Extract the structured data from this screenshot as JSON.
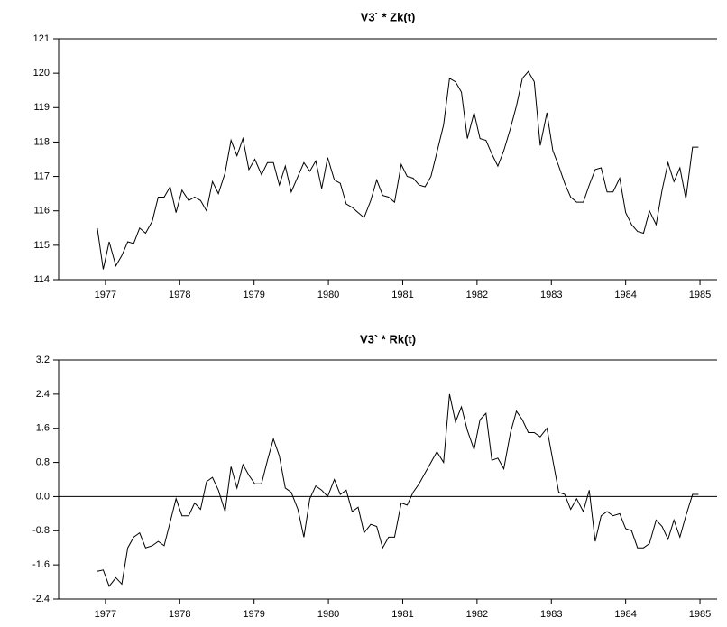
{
  "chart_data": [
    {
      "type": "line",
      "title": "V3` * Zk(t)",
      "x": [
        1976.89,
        1976.97,
        1977.05,
        1977.14,
        1977.22,
        1977.3,
        1977.38,
        1977.46,
        1977.54,
        1977.63,
        1977.71,
        1977.79,
        1977.87,
        1977.95,
        1978.03,
        1978.12,
        1978.2,
        1978.28,
        1978.36,
        1978.44,
        1978.52,
        1978.61,
        1978.69,
        1978.77,
        1978.85,
        1978.93,
        1979.01,
        1979.1,
        1979.18,
        1979.26,
        1979.34,
        1979.42,
        1979.5,
        1979.59,
        1979.67,
        1979.75,
        1979.83,
        1979.91,
        1979.99,
        1980.08,
        1980.16,
        1980.24,
        1980.32,
        1980.4,
        1980.48,
        1980.57,
        1980.65,
        1980.73,
        1980.81,
        1980.89,
        1980.98,
        1981.06,
        1981.14,
        1981.22,
        1981.3,
        1981.38,
        1981.46,
        1981.55,
        1981.63,
        1981.71,
        1981.79,
        1981.87,
        1981.96,
        1982.04,
        1982.12,
        1982.2,
        1982.28,
        1982.36,
        1982.45,
        1982.53,
        1982.61,
        1982.69,
        1982.77,
        1982.85,
        1982.94,
        1983.02,
        1983.1,
        1983.18,
        1983.26,
        1983.34,
        1983.43,
        1983.51,
        1983.59,
        1983.67,
        1983.75,
        1983.83,
        1983.92,
        1984.0,
        1984.08,
        1984.16,
        1984.24,
        1984.32,
        1984.41,
        1984.49,
        1984.57,
        1984.65,
        1984.73,
        1984.81,
        1984.9,
        1984.98
      ],
      "values": [
        115.5,
        114.3,
        115.1,
        114.4,
        114.7,
        115.1,
        115.05,
        115.5,
        115.35,
        115.7,
        116.4,
        116.4,
        116.7,
        115.95,
        116.6,
        116.3,
        116.4,
        116.3,
        116.0,
        116.85,
        116.5,
        117.1,
        118.05,
        117.6,
        118.1,
        117.2,
        117.5,
        117.05,
        117.4,
        117.4,
        116.75,
        117.3,
        116.55,
        117.0,
        117.4,
        117.15,
        117.45,
        116.65,
        117.55,
        116.9,
        116.8,
        116.2,
        116.1,
        115.95,
        115.8,
        116.3,
        116.9,
        116.45,
        116.4,
        116.25,
        117.35,
        117.0,
        116.95,
        116.75,
        116.7,
        117.0,
        117.7,
        118.5,
        119.85,
        119.75,
        119.45,
        118.1,
        118.85,
        118.1,
        118.05,
        117.65,
        117.3,
        117.75,
        118.4,
        119.05,
        119.85,
        120.05,
        119.75,
        117.9,
        118.85,
        117.75,
        117.3,
        116.8,
        116.4,
        116.25,
        116.25,
        116.75,
        117.2,
        117.25,
        116.55,
        116.55,
        116.95,
        115.95,
        115.6,
        115.4,
        115.35,
        116.0,
        115.6,
        116.6,
        117.4,
        116.85,
        117.25,
        116.35,
        117.85,
        117.85
      ],
      "color": "#000000",
      "xlim": [
        1976.37,
        1985.23
      ],
      "xticks": [
        1977,
        1978,
        1979,
        1980,
        1981,
        1982,
        1983,
        1984,
        1985
      ],
      "ylim": [
        114,
        121
      ],
      "yticks": [
        114,
        115,
        116,
        117,
        118,
        119,
        120,
        121
      ]
    },
    {
      "type": "line",
      "title": "V3` * Rk(t)",
      "x": [
        1976.89,
        1976.97,
        1977.05,
        1977.14,
        1977.22,
        1977.3,
        1977.38,
        1977.46,
        1977.54,
        1977.63,
        1977.71,
        1977.79,
        1977.87,
        1977.95,
        1978.03,
        1978.12,
        1978.2,
        1978.28,
        1978.36,
        1978.44,
        1978.52,
        1978.61,
        1978.69,
        1978.77,
        1978.85,
        1978.93,
        1979.01,
        1979.1,
        1979.18,
        1979.26,
        1979.34,
        1979.42,
        1979.5,
        1979.59,
        1979.67,
        1979.75,
        1979.83,
        1979.91,
        1979.99,
        1980.08,
        1980.16,
        1980.24,
        1980.32,
        1980.4,
        1980.48,
        1980.57,
        1980.65,
        1980.73,
        1980.81,
        1980.89,
        1980.98,
        1981.06,
        1981.14,
        1981.22,
        1981.3,
        1981.38,
        1981.46,
        1981.55,
        1981.63,
        1981.71,
        1981.79,
        1981.87,
        1981.96,
        1982.04,
        1982.12,
        1982.2,
        1982.28,
        1982.36,
        1982.45,
        1982.53,
        1982.61,
        1982.69,
        1982.77,
        1982.85,
        1982.94,
        1983.02,
        1983.1,
        1983.18,
        1983.26,
        1983.34,
        1983.43,
        1983.51,
        1983.59,
        1983.67,
        1983.75,
        1983.83,
        1983.92,
        1984.0,
        1984.08,
        1984.16,
        1984.24,
        1984.32,
        1984.41,
        1984.49,
        1984.57,
        1984.65,
        1984.73,
        1984.81,
        1984.9,
        1984.98
      ],
      "values": [
        -1.75,
        -1.72,
        -2.1,
        -1.9,
        -2.05,
        -1.2,
        -0.95,
        -0.85,
        -1.2,
        -1.15,
        -1.05,
        -1.15,
        -0.6,
        -0.05,
        -0.45,
        -0.45,
        -0.15,
        -0.3,
        0.35,
        0.45,
        0.15,
        -0.35,
        0.7,
        0.2,
        0.75,
        0.5,
        0.3,
        0.3,
        0.85,
        1.35,
        0.95,
        0.2,
        0.1,
        -0.3,
        -0.95,
        -0.05,
        0.25,
        0.15,
        0.0,
        0.4,
        0.05,
        0.15,
        -0.35,
        -0.25,
        -0.85,
        -0.65,
        -0.7,
        -1.2,
        -0.95,
        -0.95,
        -0.15,
        -0.2,
        0.1,
        0.3,
        0.55,
        0.8,
        1.05,
        0.8,
        2.4,
        1.75,
        2.1,
        1.55,
        1.1,
        1.8,
        1.95,
        0.85,
        0.9,
        0.65,
        1.5,
        2.0,
        1.8,
        1.5,
        1.5,
        1.4,
        1.6,
        0.85,
        0.1,
        0.05,
        -0.3,
        -0.05,
        -0.35,
        0.15,
        -1.05,
        -0.45,
        -0.35,
        -0.45,
        -0.4,
        -0.75,
        -0.8,
        -1.2,
        -1.2,
        -1.1,
        -0.55,
        -0.7,
        -1.0,
        -0.55,
        -0.95,
        -0.45,
        0.05,
        0.05
      ],
      "color": "#000000",
      "xlim": [
        1976.37,
        1985.23
      ],
      "xticks": [
        1977,
        1978,
        1979,
        1980,
        1981,
        1982,
        1983,
        1984,
        1985
      ],
      "ylim": [
        -2.4,
        3.2
      ],
      "yticks": [
        -2.4,
        -1.6,
        -0.8,
        {
          "value": 0,
          "label": "0.0"
        },
        0.8,
        1.6,
        2.4,
        3.2
      ],
      "zero_line": true
    }
  ]
}
